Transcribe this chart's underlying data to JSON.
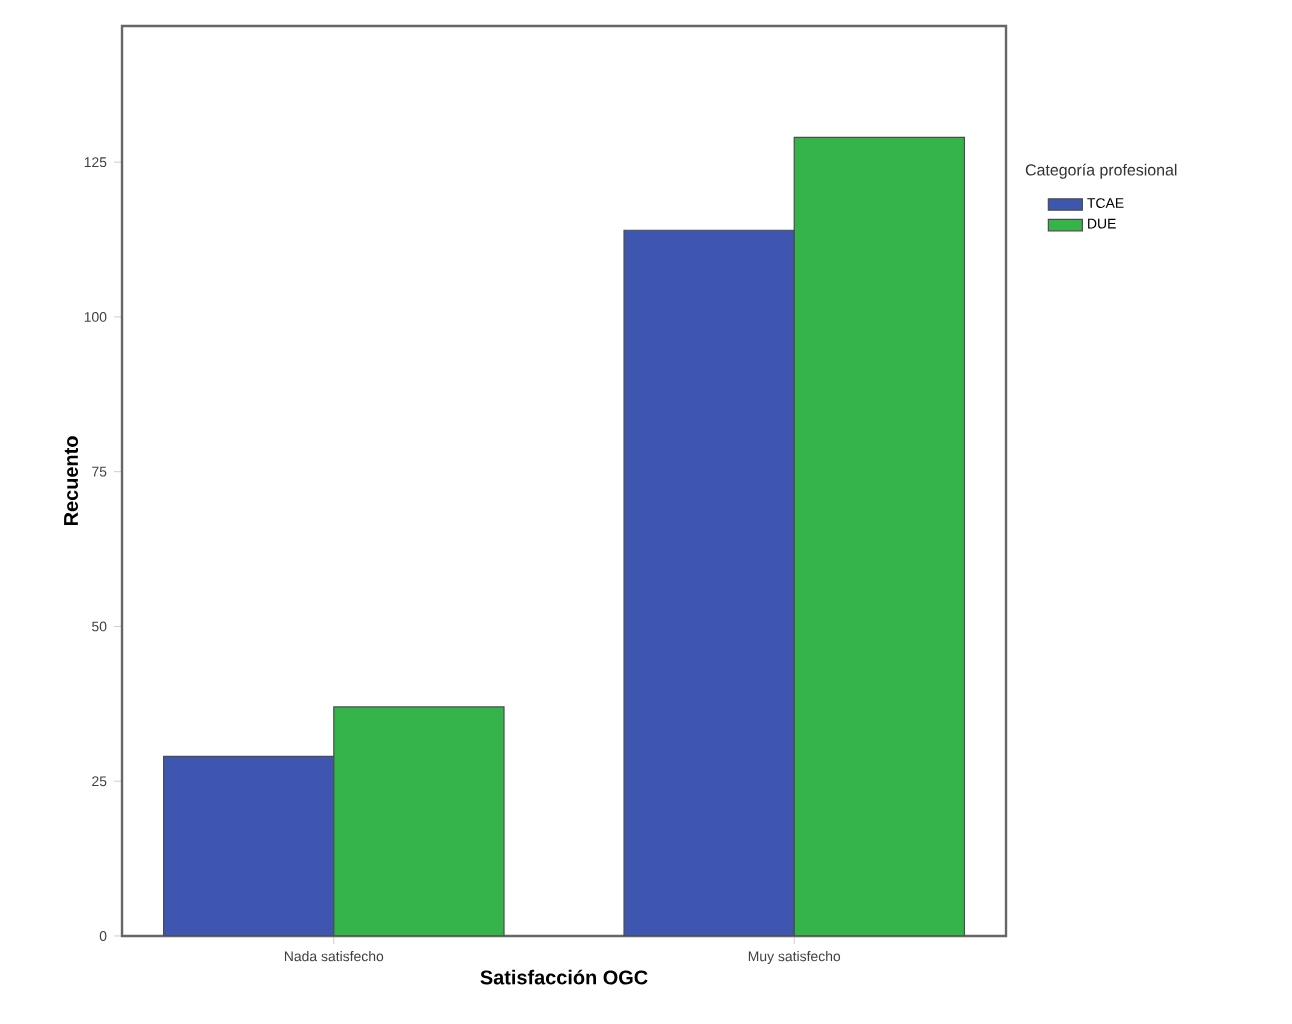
{
  "chart_data": {
    "type": "bar",
    "xlabel": "Satisfacción OGC",
    "ylabel": "Recuento",
    "legend_title": "Categoría profesional",
    "categories": [
      "Nada satisfecho",
      "Muy satisfecho"
    ],
    "series": [
      {
        "name": "TCAE",
        "color": "#3f56b0",
        "values": [
          29,
          114
        ]
      },
      {
        "name": "DUE",
        "color": "#35b44a",
        "values": [
          37,
          129
        ]
      }
    ],
    "ylim": [
      0,
      147
    ],
    "yticks": [
      0,
      25,
      50,
      75,
      100,
      125
    ],
    "grid": false,
    "legend": "right"
  }
}
